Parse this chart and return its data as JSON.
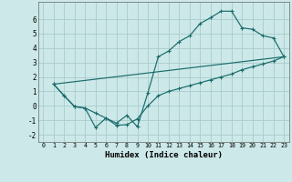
{
  "title": "",
  "xlabel": "Humidex (Indice chaleur)",
  "background_color": "#cce8e8",
  "grid_color": "#aacccc",
  "line_color": "#1a6b6b",
  "xlim": [
    -0.5,
    23.5
  ],
  "ylim": [
    -2.5,
    7.2
  ],
  "xticks": [
    0,
    1,
    2,
    3,
    4,
    5,
    6,
    7,
    8,
    9,
    10,
    11,
    12,
    13,
    14,
    15,
    16,
    17,
    18,
    19,
    20,
    21,
    22,
    23
  ],
  "yticks": [
    -2,
    -1,
    0,
    1,
    2,
    3,
    4,
    5,
    6
  ],
  "line1_x": [
    1,
    2,
    3,
    4,
    5,
    6,
    7,
    8,
    9,
    10,
    11,
    12,
    13,
    14,
    15,
    16,
    17,
    18,
    19,
    20,
    21,
    22,
    23
  ],
  "line1_y": [
    1.5,
    0.7,
    -0.05,
    -0.15,
    -1.5,
    -0.85,
    -1.2,
    -0.65,
    -1.45,
    0.9,
    3.4,
    3.8,
    4.45,
    4.85,
    5.7,
    6.1,
    6.55,
    6.55,
    5.4,
    5.3,
    4.85,
    4.7,
    3.4
  ],
  "line2_x": [
    1,
    2,
    3,
    4,
    5,
    6,
    7,
    8,
    9,
    10,
    11,
    12,
    13,
    14,
    15,
    16,
    17,
    18,
    19,
    20,
    21,
    22,
    23
  ],
  "line2_y": [
    1.5,
    0.7,
    -0.05,
    -0.15,
    -0.5,
    -0.85,
    -1.35,
    -1.3,
    -0.9,
    0.0,
    0.7,
    1.0,
    1.2,
    1.4,
    1.6,
    1.8,
    2.0,
    2.2,
    2.5,
    2.7,
    2.9,
    3.1,
    3.4
  ],
  "line3_x": [
    1,
    23
  ],
  "line3_y": [
    1.5,
    3.4
  ]
}
